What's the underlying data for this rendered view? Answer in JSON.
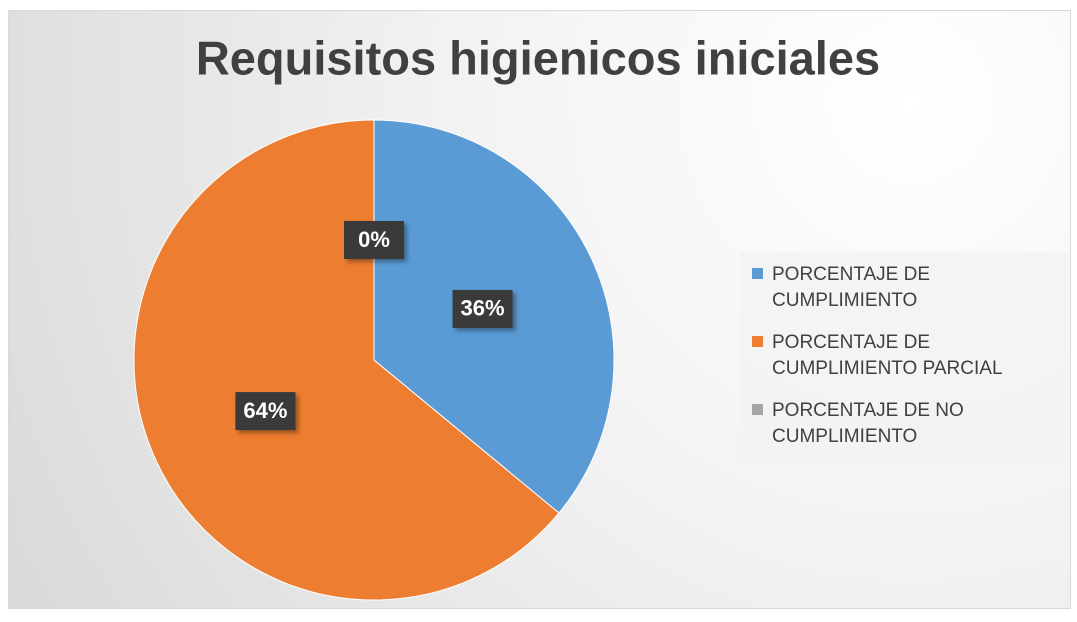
{
  "chart_data": {
    "type": "pie",
    "title": "Requisitos higienicos iniciales",
    "categories": [
      "PORCENTAJE DE CUMPLIMIENTO",
      "PORCENTAJE DE CUMPLIMIENTO PARCIAL",
      "PORCENTAJE DE NO CUMPLIMIENTO"
    ],
    "values": [
      36,
      64,
      0
    ],
    "value_labels": [
      "36%",
      "64%",
      "0%"
    ],
    "colors": [
      "#5b9bd5",
      "#ed7d31",
      "#a5a5a5"
    ],
    "legend": "right"
  }
}
